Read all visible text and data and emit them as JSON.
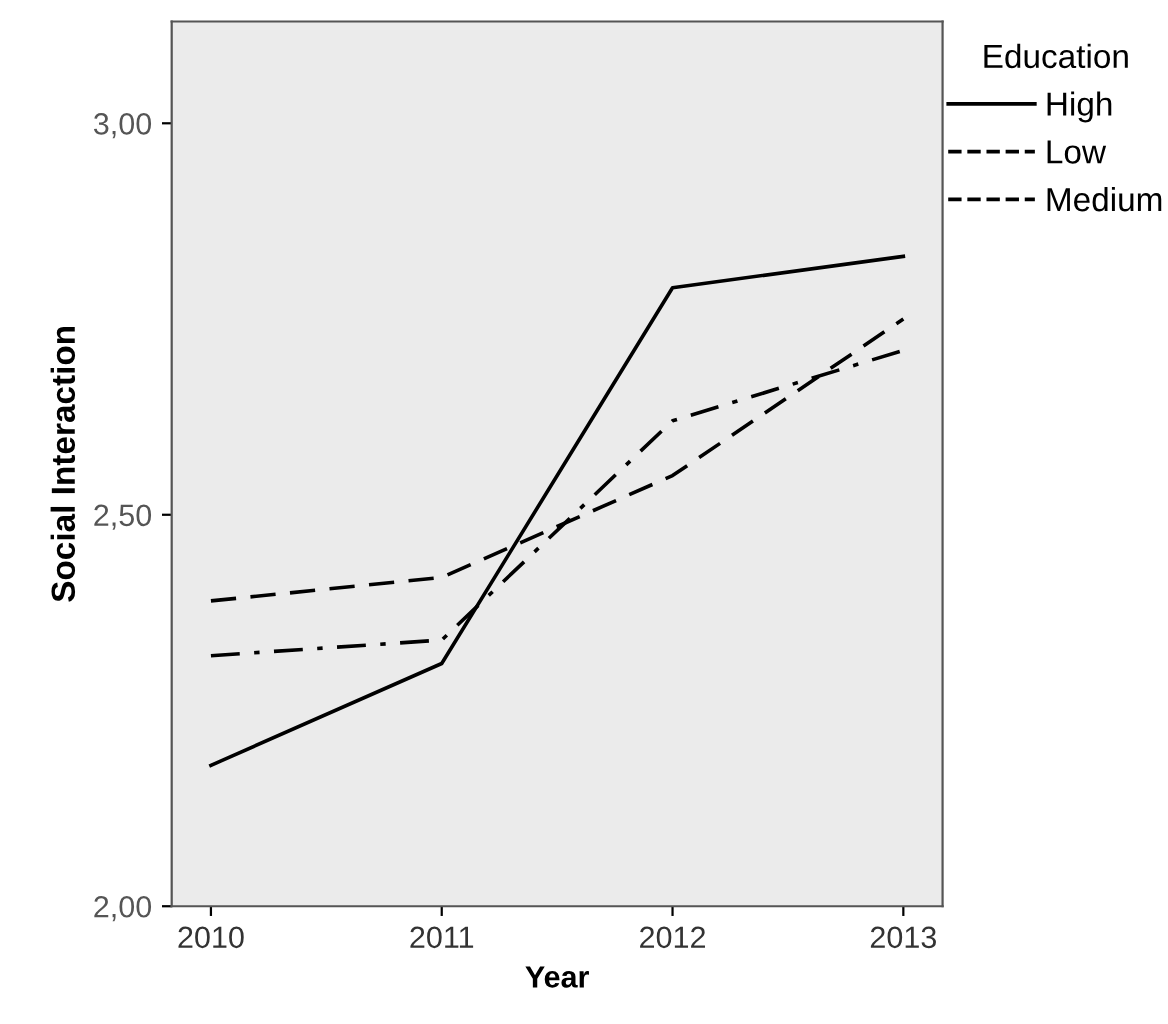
{
  "chart_data": {
    "type": "line",
    "xlabel": "Year",
    "ylabel": "Social Interaction",
    "legend_title": "Education",
    "legend": "top right",
    "x": [
      2010,
      2011,
      2012,
      2013
    ],
    "xlim": [
      2009.83,
      2013.17
    ],
    "xticks": [
      2010,
      2011,
      2012,
      2013
    ],
    "ylim": [
      2.0,
      3.13
    ],
    "yticks": [
      {
        "value": 2.0,
        "label": "2,00"
      },
      {
        "value": 2.5,
        "label": "2,50"
      },
      {
        "value": 3.0,
        "label": "3,00"
      }
    ],
    "grid": false,
    "marker": "none",
    "series": [
      {
        "name": "High",
        "color": "#000000",
        "line_style": "solid",
        "values": [
          2.18,
          2.31,
          2.79,
          2.83
        ]
      },
      {
        "name": "Low",
        "color": "#000000",
        "line_style": "dashdot",
        "values": [
          2.32,
          2.34,
          2.62,
          2.71
        ]
      },
      {
        "name": "Medium",
        "color": "#000000",
        "line_style": "dashed",
        "values": [
          2.39,
          2.42,
          2.55,
          2.75
        ]
      }
    ]
  }
}
